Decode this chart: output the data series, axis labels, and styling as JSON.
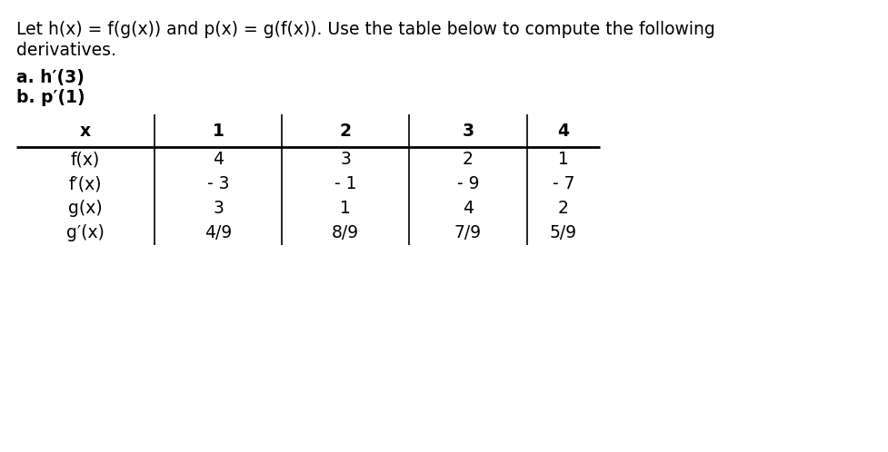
{
  "title_line1": "Let h(x) = f(g(x)) and p(x) = g(f(x)). Use the table below to compute the following",
  "title_line2": "derivatives.",
  "bullet_a_prefix": "a. ",
  "bullet_a_func": "h",
  "bullet_a_suffix": "(3)",
  "bullet_b_prefix": "b. ",
  "bullet_b_func": "p",
  "bullet_b_suffix": "(1)",
  "col_headers": [
    "x",
    "1",
    "2",
    "3",
    "4"
  ],
  "row_labels": [
    "f(x)",
    "f′(x)",
    "g(x)",
    "g′(x)"
  ],
  "table_data": [
    [
      "4",
      "3",
      "2",
      "1"
    ],
    [
      "- 3",
      "- 1",
      "- 9",
      "- 7"
    ],
    [
      "3",
      "1",
      "4",
      "2"
    ],
    [
      "4/9",
      "8/9",
      "7/9",
      "5/9"
    ]
  ],
  "bg_color": "#ffffff",
  "text_color": "#000000",
  "font_size": 13.5,
  "table_font_size": 13.5
}
